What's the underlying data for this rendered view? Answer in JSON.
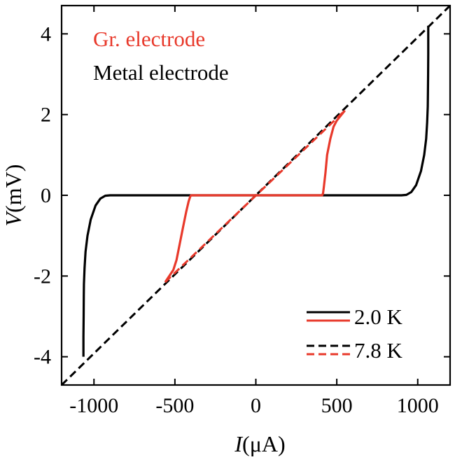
{
  "chart_data": {
    "type": "line",
    "xlabel": {
      "symbol": "I",
      "unit": "(μA)"
    },
    "ylabel": {
      "symbol": "V",
      "unit": "(mV)"
    },
    "xlim": [
      -1200,
      1200
    ],
    "ylim": [
      -4.7,
      4.7
    ],
    "xticks": [
      -1000,
      -500,
      0,
      500,
      1000
    ],
    "xtick_labels": [
      "-1000",
      "-500",
      "0",
      "500",
      "1000"
    ],
    "yticks": [
      -4,
      -2,
      0,
      2,
      4
    ],
    "ytick_labels": [
      "-4",
      "-2",
      "0",
      "2",
      "4"
    ],
    "annotations": [
      {
        "text": "Gr. electrode",
        "color": "#e8392b"
      },
      {
        "text": "Metal electrode",
        "color": "#000000"
      }
    ],
    "legend": {
      "placement": "bottom-right",
      "entries": [
        {
          "label": "2.0 K",
          "style": "solid",
          "colors": [
            "#000000",
            "#e8392b"
          ]
        },
        {
          "label": "7.8 K",
          "style": "dashed",
          "colors": [
            "#000000",
            "#e8392b"
          ]
        }
      ]
    },
    "series": [
      {
        "electrode": "metal",
        "temperature": "2.0 K",
        "color": "#000000",
        "style": "solid",
        "x": [
          -1065,
          -1065,
          -1064,
          -1063,
          -1062,
          -1058,
          -1052,
          -1040,
          -1020,
          -990,
          -960,
          -930,
          -900,
          0,
          900,
          930,
          960,
          990,
          1020,
          1040,
          1052,
          1058,
          1062,
          1063,
          1064,
          1065,
          1065
        ],
        "y": [
          -4.0,
          -3.5,
          -3.0,
          -2.5,
          -2.2,
          -1.8,
          -1.4,
          -1.0,
          -0.6,
          -0.25,
          -0.08,
          -0.01,
          0,
          0,
          0,
          0.01,
          0.08,
          0.25,
          0.6,
          1.0,
          1.4,
          1.8,
          2.2,
          2.5,
          3.0,
          3.5,
          4.2
        ]
      },
      {
        "electrode": "metal",
        "temperature": "7.8 K",
        "color": "#000000",
        "style": "dashed",
        "x": [
          -1200,
          1200
        ],
        "y": [
          -4.7,
          4.7
        ]
      },
      {
        "electrode": "graphene",
        "temperature": "2.0 K",
        "color": "#e8392b",
        "style": "solid",
        "x": [
          -560,
          -510,
          -490,
          -470,
          -450,
          -430,
          -415,
          -405,
          -400,
          0,
          410,
          415,
          420,
          430,
          440,
          460,
          480,
          500,
          550
        ],
        "y": [
          -2.15,
          -1.85,
          -1.6,
          -1.2,
          -0.8,
          -0.4,
          -0.15,
          -0.03,
          0,
          0,
          0,
          0.05,
          0.2,
          0.55,
          1.0,
          1.4,
          1.7,
          1.85,
          2.1
        ]
      },
      {
        "electrode": "graphene",
        "temperature": "7.8 K",
        "color": "#e8392b",
        "style": "dashed",
        "x": [
          -560,
          550
        ],
        "y": [
          -2.15,
          2.1
        ]
      }
    ]
  }
}
